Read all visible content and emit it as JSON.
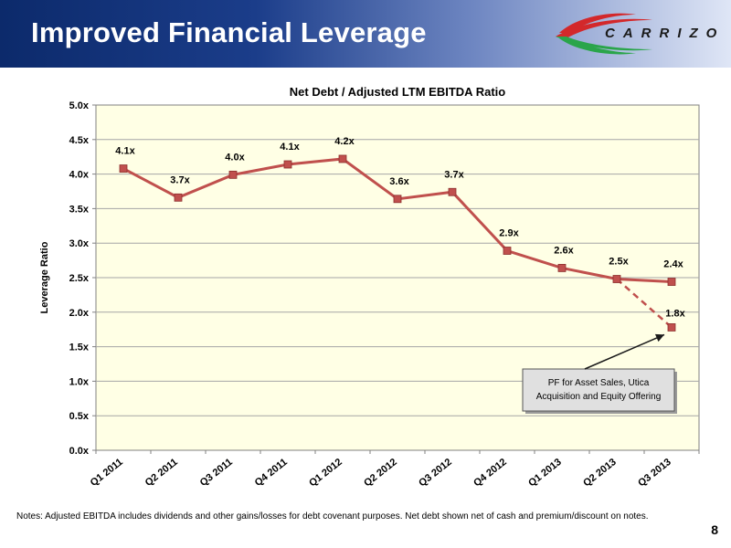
{
  "header": {
    "title": "Improved Financial Leverage",
    "logo_text": "CARRIZO"
  },
  "colors": {
    "header_dark": "#0c2a6b",
    "plot_background": "#ffffe5",
    "series_line": "#c0504d",
    "logo_red": "#d3282b",
    "logo_green": "#2aa54a"
  },
  "chart_data": {
    "type": "line",
    "title": "Net Debt / Adjusted LTM EBITDA Ratio",
    "xlabel": "",
    "ylabel": "Leverage Ratio",
    "categories": [
      "Q1 2011",
      "Q2 2011",
      "Q3 2011",
      "Q4 2011",
      "Q1 2012",
      "Q2 2012",
      "Q3 2012",
      "Q4 2012",
      "Q1 2013",
      "Q2 2013",
      "Q3 2013"
    ],
    "ylim": [
      0,
      5
    ],
    "yticks": [
      "0.0x",
      "0.5x",
      "1.0x",
      "1.5x",
      "2.0x",
      "2.5x",
      "3.0x",
      "3.5x",
      "4.0x",
      "4.5x",
      "5.0x"
    ],
    "grid": true,
    "series": [
      {
        "values": [
          4.08,
          3.66,
          3.99,
          4.14,
          4.22,
          3.64,
          3.74,
          2.89,
          2.64,
          2.48,
          2.44
        ],
        "labels": [
          "4.1x",
          "3.7x",
          "4.0x",
          "4.1x",
          "4.2x",
          "3.6x",
          "3.7x",
          "2.9x",
          "2.6x",
          "2.5x",
          "2.4x"
        ]
      }
    ],
    "pro_forma": {
      "from_category": "Q2 2013",
      "from_value": 2.48,
      "category": "Q3 2013",
      "value": 1.78,
      "label": "1.8x",
      "line_style": "dashed"
    },
    "annotation": {
      "text_lines": [
        "PF for Asset Sales, Utica",
        "Acquisition and Equity Offering"
      ],
      "points_to": "1.8x"
    }
  },
  "footer": {
    "notes": "Notes: Adjusted EBITDA includes dividends and other gains/losses for debt covenant purposes.  Net debt shown net of cash and premium/discount on notes.",
    "page_number": "8"
  }
}
